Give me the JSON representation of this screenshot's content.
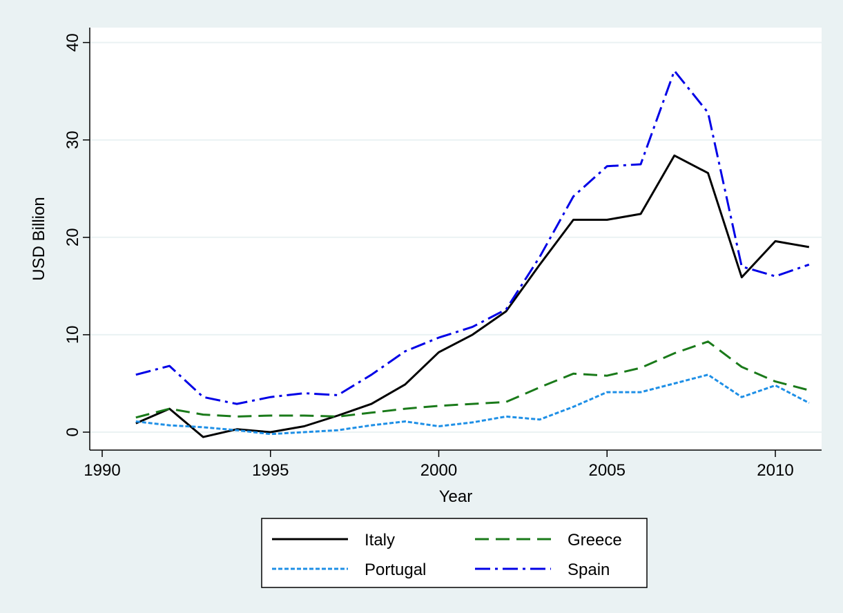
{
  "colors": {
    "outer_background": "#eaf2f3",
    "plot_background": "#ffffff",
    "gridline": "#eaf2f3",
    "italy": "#000000",
    "greece": "#1a7a1a",
    "portugal": "#1e8fe6",
    "spain": "#0000e6"
  },
  "chart_data": {
    "type": "line",
    "title": "",
    "xlabel": "Year",
    "ylabel": "USD Billion",
    "xlim": [
      1990,
      2011
    ],
    "ylim": [
      -1,
      41
    ],
    "xticks": [
      1990,
      1995,
      2000,
      2005,
      2010
    ],
    "yticks": [
      0,
      10,
      20,
      30,
      40
    ],
    "x_tick_labels": [
      "1990",
      "1995",
      "2000",
      "2005",
      "2010"
    ],
    "y_tick_labels": [
      "0",
      "10",
      "20",
      "30",
      "40"
    ],
    "grid": "horizontal",
    "legend_placement": "bottom",
    "x": [
      1991,
      1992,
      1993,
      1994,
      1995,
      1996,
      1997,
      1998,
      1999,
      2000,
      2001,
      2002,
      2003,
      2004,
      2005,
      2006,
      2007,
      2008,
      2009,
      2010,
      2011
    ],
    "series": [
      {
        "name": "Italy",
        "style": "solid",
        "color": "#000000",
        "values": [
          0.9,
          2.4,
          -0.5,
          0.3,
          0.0,
          0.6,
          1.7,
          2.9,
          4.9,
          8.2,
          10.0,
          12.4,
          17.2,
          21.8,
          21.8,
          22.4,
          28.4,
          26.6,
          15.9,
          19.6,
          19.0
        ]
      },
      {
        "name": "Greece",
        "style": "long-dash",
        "color": "#1a7a1a",
        "values": [
          1.5,
          2.4,
          1.8,
          1.6,
          1.7,
          1.7,
          1.6,
          2.0,
          2.4,
          2.7,
          2.9,
          3.1,
          4.6,
          6.0,
          5.8,
          6.6,
          8.1,
          9.3,
          6.7,
          5.2,
          4.3
        ]
      },
      {
        "name": "Portugal",
        "style": "short-dash",
        "color": "#1e8fe6",
        "values": [
          1.1,
          0.7,
          0.5,
          0.2,
          -0.2,
          0.0,
          0.2,
          0.7,
          1.1,
          0.6,
          1.0,
          1.6,
          1.3,
          2.6,
          4.1,
          4.1,
          5.0,
          5.9,
          3.6,
          4.8,
          3.0
        ]
      },
      {
        "name": "Spain",
        "style": "dash-dot",
        "color": "#0000e6",
        "values": [
          5.9,
          6.8,
          3.6,
          2.9,
          3.6,
          4.0,
          3.8,
          5.9,
          8.3,
          9.7,
          10.8,
          12.6,
          18.0,
          24.2,
          27.3,
          27.5,
          37.1,
          32.8,
          17.0,
          16.0,
          17.2
        ]
      }
    ]
  }
}
